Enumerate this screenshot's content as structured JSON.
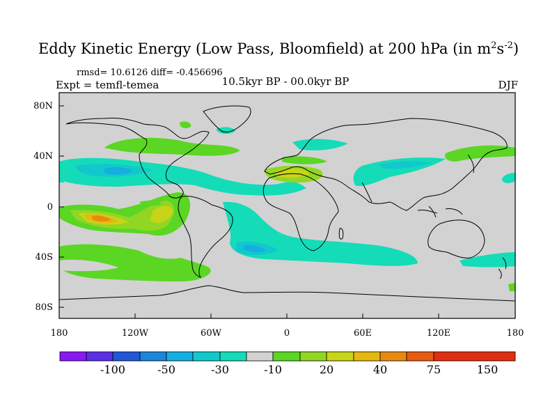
{
  "title": {
    "main": "Eddy Kinetic Energy (Low Pass, Bloomfield) at 200 hPa (in m",
    "sup1": "2",
    "mid": "s",
    "sup2": "-2",
    "end": ")"
  },
  "stats": "rmsd= 10.6126 diff= -0.456696",
  "experiment": "Expt = temfl-temea",
  "period": "10.5kyr BP - 00.0kyr BP",
  "season": "DJF",
  "map": {
    "background": "#d2d2d2",
    "lat_ticks": [
      "80N",
      "40N",
      "0",
      "40S",
      "80S"
    ],
    "lon_ticks": [
      "180",
      "120W",
      "60W",
      "0",
      "60E",
      "120E",
      "180"
    ]
  },
  "colorbar": {
    "colors": [
      "#8a18f2",
      "#5a2fe6",
      "#2157d8",
      "#1a86dc",
      "#14aee0",
      "#12c8cc",
      "#14dcb8",
      "#d2d2d2",
      "#5ad623",
      "#92d624",
      "#c8d418",
      "#e6b80e",
      "#e88a10",
      "#e85a10",
      "#e02e10"
    ],
    "labels": [
      "-100",
      "-50",
      "-30",
      "-10",
      "20",
      "40",
      "75",
      "150"
    ]
  }
}
